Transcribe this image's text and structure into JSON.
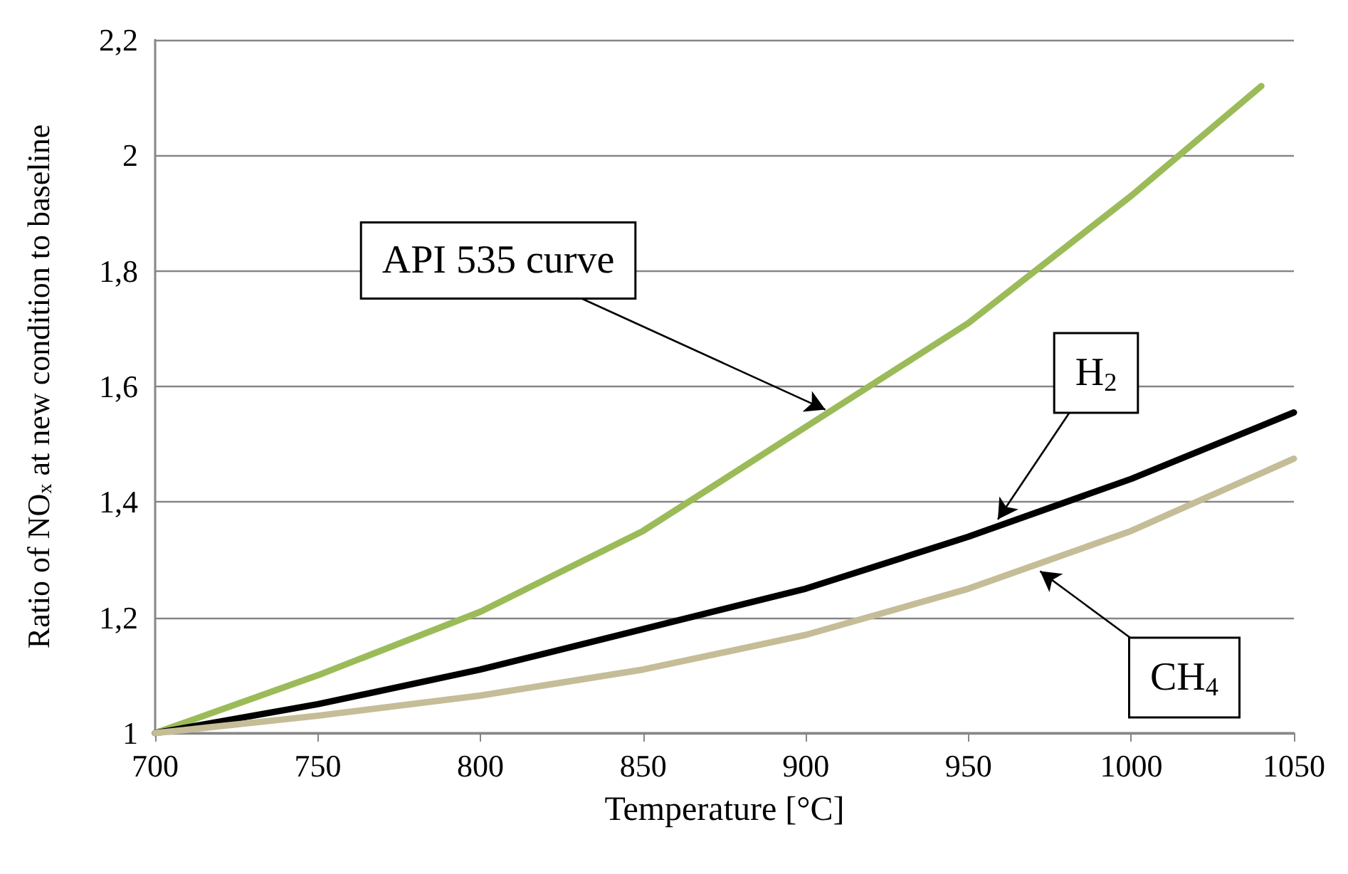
{
  "chart_data": {
    "type": "line",
    "xlabel": "Temperature [°C]",
    "ylabel": "Ratio of NO$_{x}$ at new condition to baseline",
    "xlim": [
      700,
      1050
    ],
    "xticks": [
      700,
      750,
      800,
      850,
      900,
      950,
      1000,
      1050
    ],
    "ylim": [
      1,
      2.2
    ],
    "yticks": [
      1,
      {
        "value": 1.2,
        "label": "1,2"
      },
      {
        "value": 1.4,
        "label": "1,4"
      },
      {
        "value": 1.6,
        "label": "1,6"
      },
      {
        "value": 1.8,
        "label": "1,8"
      },
      2,
      {
        "value": 2.2,
        "label": "2,2"
      }
    ],
    "grid": "y",
    "marker": "none",
    "line_style": "solid",
    "series": [
      {
        "color": "#9bbb59",
        "x": [
          700,
          750,
          800,
          850,
          900,
          950,
          1000,
          1040
        ],
        "values": [
          1.0,
          1.1,
          1.21,
          1.35,
          1.53,
          1.71,
          1.93,
          2.12
        ]
      },
      {
        "color": "#000000",
        "x": [
          700,
          750,
          800,
          850,
          900,
          950,
          1000,
          1050
        ],
        "values": [
          1.0,
          1.05,
          1.11,
          1.18,
          1.25,
          1.34,
          1.44,
          1.555
        ]
      },
      {
        "color": "#c4bd97",
        "x": [
          700,
          750,
          800,
          850,
          900,
          950,
          1000,
          1050
        ],
        "values": [
          1.0,
          1.03,
          1.065,
          1.11,
          1.17,
          1.25,
          1.35,
          1.475
        ]
      }
    ],
    "annotations": [
      {
        "text": "API 535 curve",
        "x": 906,
        "y": 1.55
      },
      {
        "text": "H$_{2}$",
        "x": 959,
        "y": 1.36
      },
      {
        "text": "CH$_{4}$",
        "x": 972,
        "y": 1.29
      }
    ]
  }
}
